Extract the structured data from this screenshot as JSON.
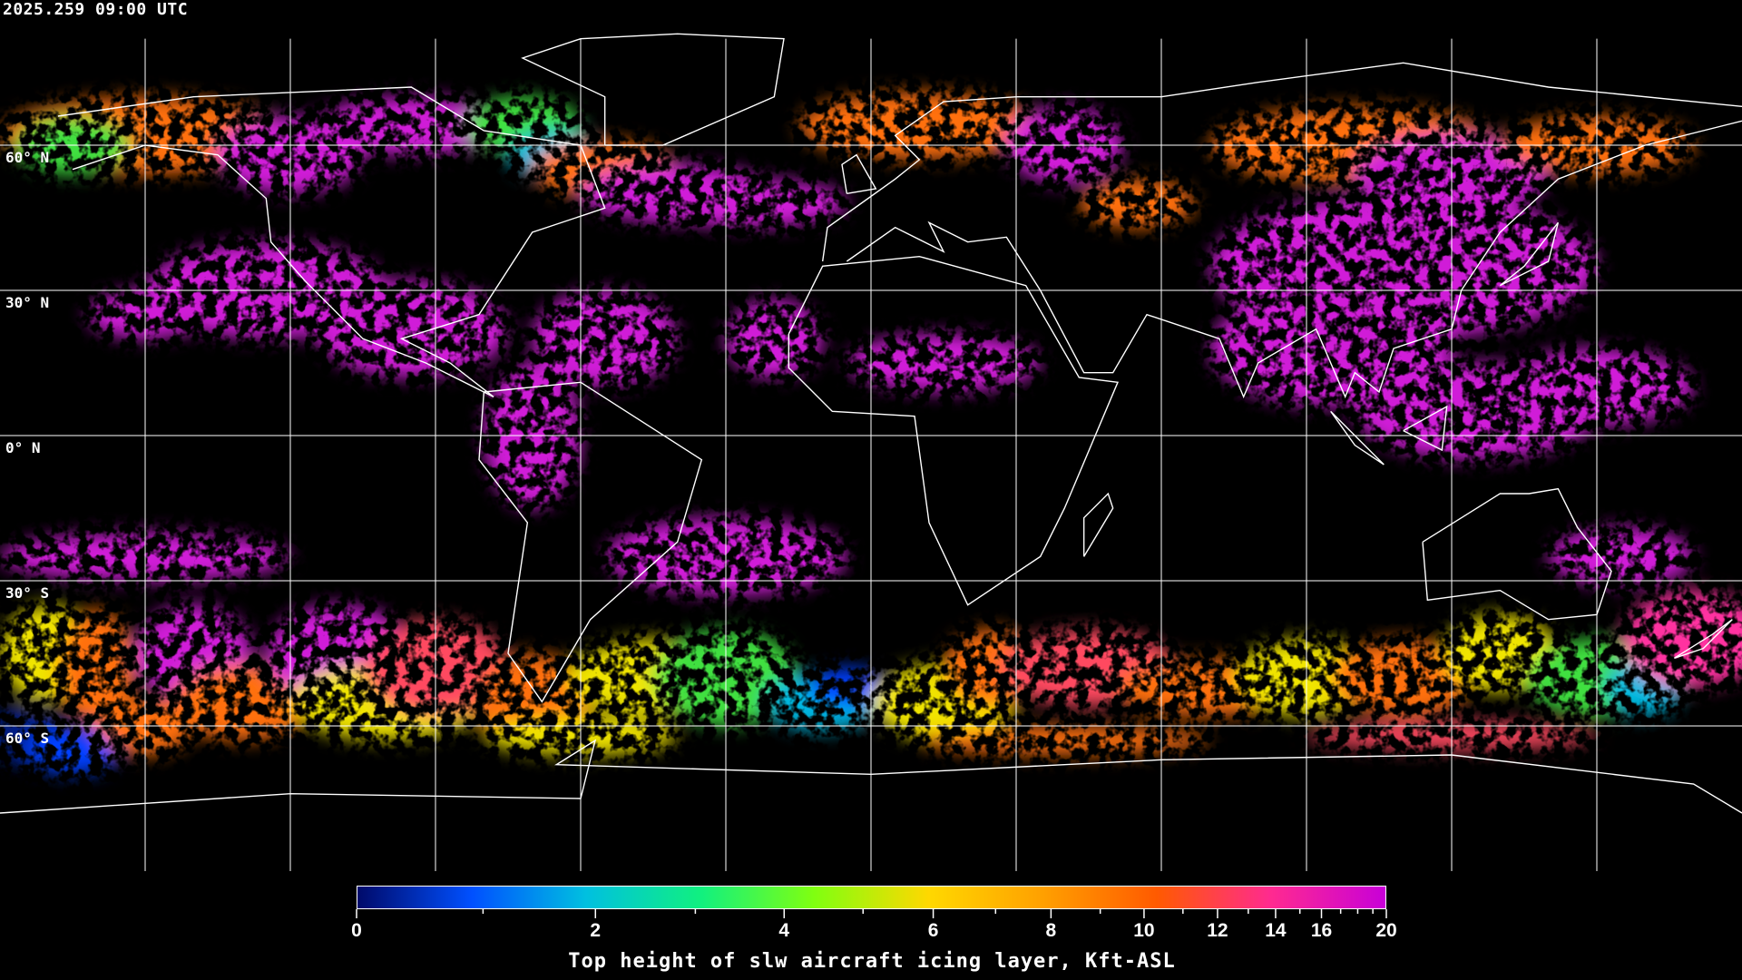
{
  "header": {
    "timestamp": "2025.259 09:00 UTC"
  },
  "map": {
    "projection": "equirectangular",
    "lon_range": [
      -180,
      180
    ],
    "lat_range": [
      -90,
      90
    ],
    "grid_spacing_deg": 30,
    "grid_color": "#ffffff",
    "coastline_color": "#ffffff",
    "background": "#000000",
    "lat_labels": [
      {
        "lat": 60,
        "text": "60° N"
      },
      {
        "lat": 30,
        "text": "30° N"
      },
      {
        "lat": 0,
        "text": "0° N"
      },
      {
        "lat": -30,
        "text": "30° S"
      },
      {
        "lat": -60,
        "text": "60° S"
      }
    ]
  },
  "colorbar": {
    "title": "Top height of slw aircraft icing layer, Kft-ASL",
    "min": 0,
    "max": 20,
    "tick_labels": [
      "0",
      "2",
      "4",
      "6",
      "8",
      "10",
      "12",
      "14",
      "16",
      "20"
    ],
    "major_ticks": [
      0,
      2,
      4,
      6,
      8,
      10,
      12,
      14,
      16,
      20
    ],
    "minor_ticks": [
      1,
      3,
      5,
      7,
      9,
      11,
      13,
      15,
      17,
      18,
      19
    ],
    "colors": [
      "#000a6a",
      "#0050ff",
      "#00c0e0",
      "#10f080",
      "#80ff10",
      "#ffd800",
      "#ffa000",
      "#ff5a00",
      "#ff2a90",
      "#c800d8"
    ]
  }
}
